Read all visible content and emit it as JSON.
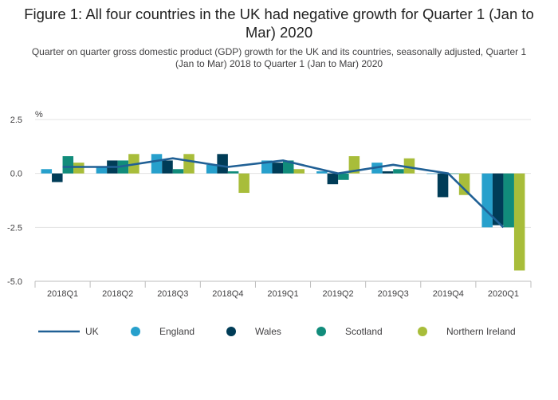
{
  "chart_data": {
    "type": "bar",
    "title": "Figure 1: All four countries in the UK had negative growth for Quarter 1 (Jan to Mar) 2020",
    "subtitle": "Quarter on quarter gross domestic product (GDP) growth for the UK and its countries, seasonally adjusted, Quarter 1 (Jan to Mar) 2018 to Quarter 1 (Jan to Mar) 2020",
    "ylabel": "%",
    "xlabel": "",
    "ylim": [
      -5.0,
      2.5
    ],
    "yticks": [
      2.5,
      0.0,
      -2.5,
      -5.0
    ],
    "ytick_labels": [
      "2.5",
      "0.0",
      "-2.5",
      "-5.0"
    ],
    "categories": [
      "2018Q1",
      "2018Q2",
      "2018Q3",
      "2018Q4",
      "2019Q1",
      "2019Q2",
      "2019Q3",
      "2019Q4",
      "2020Q1"
    ],
    "grid": true,
    "legend_position": "bottom",
    "line_series": {
      "name": "UK",
      "color": "#206095",
      "values": [
        0.3,
        0.3,
        0.7,
        0.3,
        0.6,
        0.0,
        0.4,
        0.0,
        -2.5
      ]
    },
    "series": [
      {
        "name": "England",
        "color": "#27a0cc",
        "values": [
          0.2,
          0.3,
          0.9,
          0.4,
          0.6,
          0.1,
          0.5,
          0.0,
          -2.5
        ]
      },
      {
        "name": "Wales",
        "color": "#003c57",
        "values": [
          -0.4,
          0.6,
          0.6,
          0.9,
          0.5,
          -0.5,
          0.1,
          -1.1,
          -2.4
        ]
      },
      {
        "name": "Scotland",
        "color": "#118c7b",
        "values": [
          0.8,
          0.6,
          0.2,
          0.1,
          0.6,
          -0.3,
          0.2,
          0.0,
          -2.5
        ]
      },
      {
        "name": "Northern Ireland",
        "color": "#a8bd3a",
        "values": [
          0.5,
          0.9,
          0.9,
          -0.9,
          0.2,
          0.8,
          0.7,
          -1.0,
          -4.5
        ]
      }
    ]
  }
}
